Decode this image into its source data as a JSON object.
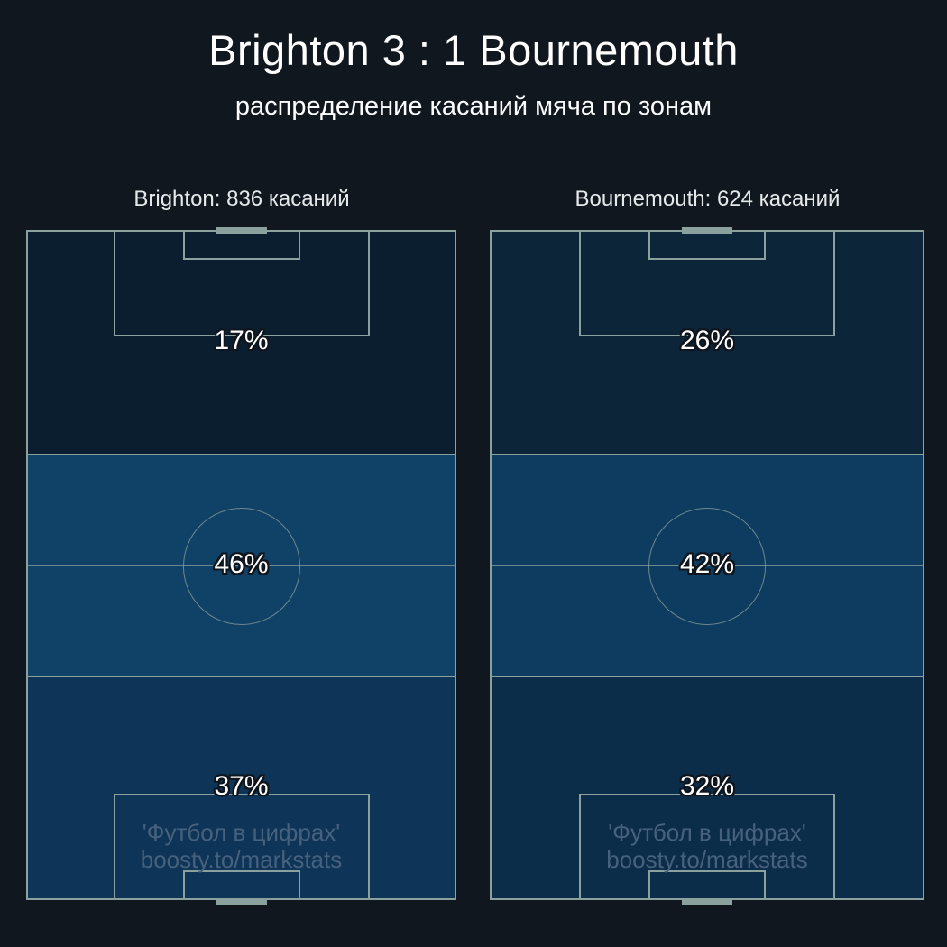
{
  "header": {
    "title": "Brighton 3 : 1 Bournemouth",
    "subtitle": "распределение касаний мяча по зонам"
  },
  "colors": {
    "background": "#10171f",
    "pitch_line": "#8ba19e",
    "percent_text": "#ffffff",
    "watermark": "#46617d"
  },
  "watermark": {
    "line1": "'Футбол в цифрах'",
    "line2": "boosty.to/markstats"
  },
  "pitches": [
    {
      "header": "Brighton: 836 касаний",
      "team": "Brighton",
      "touches": 836,
      "zones": [
        {
          "position": "top",
          "label": "17%",
          "value_pct": 17,
          "color": "#0b1e30"
        },
        {
          "position": "middle",
          "label": "46%",
          "value_pct": 46,
          "color": "#104268"
        },
        {
          "position": "bottom",
          "label": "37%",
          "value_pct": 37,
          "color": "#0e3457"
        }
      ]
    },
    {
      "header": "Bournemouth: 624 касаний",
      "team": "Bournemouth",
      "touches": 624,
      "zones": [
        {
          "position": "top",
          "label": "26%",
          "value_pct": 26,
          "color": "#0d2539"
        },
        {
          "position": "middle",
          "label": "42%",
          "value_pct": 42,
          "color": "#0e3c60"
        },
        {
          "position": "bottom",
          "label": "32%",
          "value_pct": 32,
          "color": "#0c2d4a"
        }
      ]
    }
  ],
  "chart_data": {
    "type": "heatmap",
    "title": "Brighton 3 : 1 Bournemouth",
    "subtitle": "распределение касаний мяча по зонам",
    "categories": [
      "top third",
      "middle third",
      "bottom third"
    ],
    "series": [
      {
        "name": "Brighton",
        "total_touches": 836,
        "values_pct": [
          17,
          46,
          37
        ]
      },
      {
        "name": "Bournemouth",
        "total_touches": 624,
        "values_pct": [
          26,
          42,
          32
        ]
      }
    ],
    "legend_position": "none",
    "grid": false,
    "value_unit": "% of team ball touches per pitch third"
  }
}
